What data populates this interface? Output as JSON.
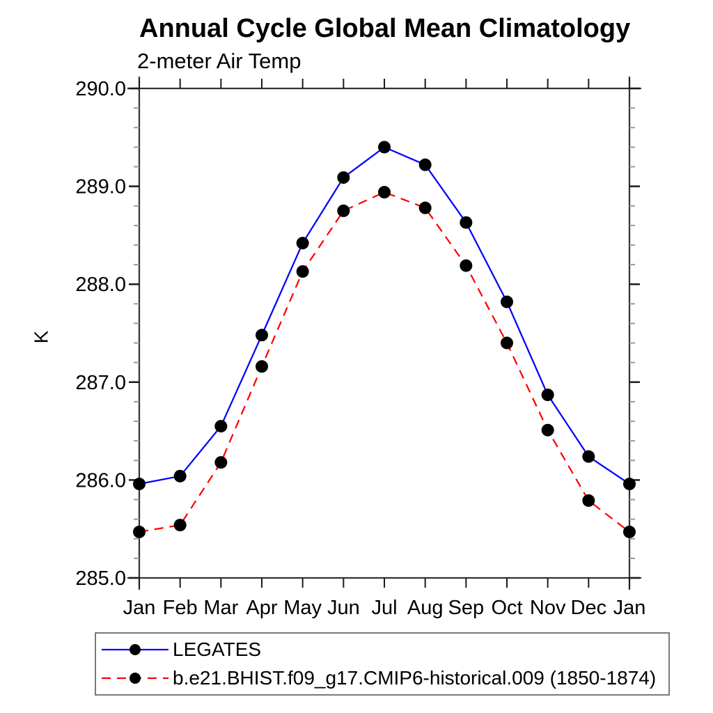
{
  "chart_data": {
    "type": "line",
    "title": "Annual Cycle Global Mean Climatology",
    "subtitle": "2-meter Air Temp",
    "ylabel": "K",
    "xlabel": "",
    "x_tick_labels": [
      "Jan",
      "Feb",
      "Mar",
      "Apr",
      "May",
      "Jun",
      "Jul",
      "Aug",
      "Sep",
      "Oct",
      "Nov",
      "Dec",
      "Jan"
    ],
    "ylim": [
      285.0,
      290.0
    ],
    "y_major_step": 1.0,
    "y_minor_step": 0.2,
    "y_tick_decimals": 1,
    "grid": false,
    "legend_position": "bottom-left",
    "series": [
      {
        "name": "LEGATES",
        "color": "#0000ff",
        "line_style": "solid",
        "marker": "filled-circle",
        "marker_color": "#000000",
        "values": [
          285.96,
          286.04,
          286.55,
          287.48,
          288.42,
          289.09,
          289.4,
          289.22,
          288.63,
          287.82,
          286.87,
          286.24,
          285.96
        ]
      },
      {
        "name": "b.e21.BHIST.f09_g17.CMIP6-historical.009 (1850-1874)",
        "color": "#ff0000",
        "line_style": "dashed",
        "marker": "filled-circle",
        "marker_color": "#000000",
        "values": [
          285.47,
          285.54,
          286.18,
          287.16,
          288.13,
          288.75,
          288.94,
          288.78,
          288.19,
          287.4,
          286.51,
          285.79,
          285.47
        ]
      }
    ]
  },
  "style_colors": {
    "frame": "#333333",
    "major_tick": "#1a1a1a",
    "minor_tick": "#999999",
    "text": "#000000"
  }
}
